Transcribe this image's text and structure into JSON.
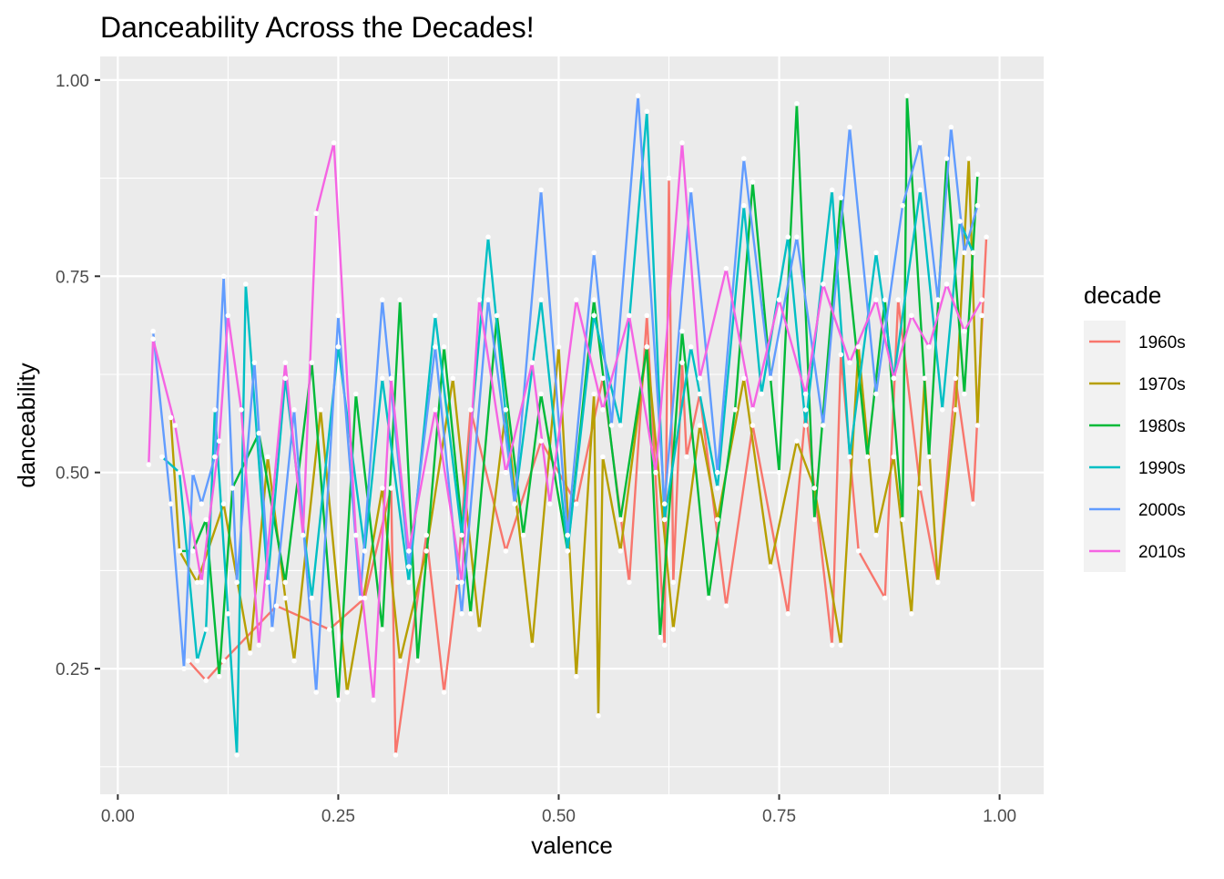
{
  "chart_data": {
    "type": "line",
    "title": "Danceability Across the Decades!",
    "xlabel": "valence",
    "ylabel": "danceability",
    "xlim": [
      -0.02,
      1.05
    ],
    "ylim": [
      0.09,
      1.03
    ],
    "x_ticks": [
      0.0,
      0.25,
      0.5,
      0.75,
      1.0
    ],
    "x_tick_labels": [
      "0.00",
      "0.25",
      "0.50",
      "0.75",
      "1.00"
    ],
    "y_ticks": [
      0.25,
      0.5,
      0.75,
      1.0
    ],
    "y_tick_labels": [
      "0.25",
      "0.50",
      "0.75",
      "1.00"
    ],
    "grid": true,
    "legend_title": "decade",
    "legend_position": "right",
    "point_color": "#ffffff",
    "panel_background": "#ebebeb",
    "series": [
      {
        "name": "1960s",
        "color": "#F8766D",
        "x": [
          0.08,
          0.1,
          0.12,
          0.18,
          0.24,
          0.28,
          0.31,
          0.315,
          0.35,
          0.37,
          0.385,
          0.4,
          0.44,
          0.48,
          0.52,
          0.55,
          0.58,
          0.6,
          0.62,
          0.625,
          0.63,
          0.64,
          0.645,
          0.66,
          0.69,
          0.72,
          0.76,
          0.78,
          0.81,
          0.82,
          0.84,
          0.87,
          0.885,
          0.91,
          0.93,
          0.95,
          0.97,
          0.985
        ],
        "y": [
          0.26,
          0.235,
          0.26,
          0.33,
          0.3,
          0.34,
          0.48,
          0.14,
          0.42,
          0.22,
          0.36,
          0.58,
          0.4,
          0.54,
          0.46,
          0.62,
          0.36,
          0.7,
          0.28,
          0.875,
          0.36,
          0.64,
          0.52,
          0.6,
          0.33,
          0.56,
          0.32,
          0.58,
          0.28,
          0.65,
          0.4,
          0.34,
          0.72,
          0.48,
          0.36,
          0.62,
          0.46,
          0.8
        ]
      },
      {
        "name": "1970s",
        "color": "#B79F00",
        "x": [
          0.06,
          0.07,
          0.09,
          0.12,
          0.15,
          0.17,
          0.19,
          0.2,
          0.23,
          0.26,
          0.3,
          0.32,
          0.35,
          0.38,
          0.41,
          0.44,
          0.47,
          0.5,
          0.52,
          0.54,
          0.545,
          0.55,
          0.57,
          0.6,
          0.63,
          0.66,
          0.68,
          0.71,
          0.74,
          0.77,
          0.79,
          0.82,
          0.84,
          0.86,
          0.88,
          0.9,
          0.915,
          0.93,
          0.95,
          0.965,
          0.975,
          0.98
        ],
        "y": [
          0.57,
          0.4,
          0.36,
          0.46,
          0.27,
          0.52,
          0.34,
          0.26,
          0.58,
          0.22,
          0.48,
          0.26,
          0.4,
          0.62,
          0.3,
          0.58,
          0.28,
          0.66,
          0.24,
          0.6,
          0.19,
          0.52,
          0.4,
          0.66,
          0.3,
          0.56,
          0.44,
          0.62,
          0.38,
          0.54,
          0.48,
          0.28,
          0.66,
          0.42,
          0.52,
          0.32,
          0.62,
          0.36,
          0.58,
          0.9,
          0.56,
          0.7
        ]
      },
      {
        "name": "1980s",
        "color": "#00BA38",
        "x": [
          0.07,
          0.085,
          0.1,
          0.115,
          0.13,
          0.16,
          0.19,
          0.22,
          0.25,
          0.27,
          0.3,
          0.32,
          0.34,
          0.37,
          0.4,
          0.43,
          0.46,
          0.48,
          0.51,
          0.54,
          0.57,
          0.6,
          0.615,
          0.64,
          0.67,
          0.7,
          0.72,
          0.75,
          0.77,
          0.79,
          0.82,
          0.85,
          0.87,
          0.89,
          0.895,
          0.92,
          0.94,
          0.96,
          0.975
        ],
        "y": [
          0.4,
          0.4,
          0.44,
          0.24,
          0.48,
          0.55,
          0.36,
          0.64,
          0.21,
          0.6,
          0.3,
          0.72,
          0.26,
          0.66,
          0.32,
          0.7,
          0.42,
          0.6,
          0.4,
          0.72,
          0.44,
          0.66,
          0.29,
          0.68,
          0.34,
          0.58,
          0.87,
          0.5,
          0.97,
          0.44,
          0.85,
          0.52,
          0.72,
          0.44,
          0.98,
          0.52,
          0.9,
          0.6,
          0.88
        ]
      },
      {
        "name": "1990s",
        "color": "#00BFC4",
        "x": [
          0.05,
          0.07,
          0.09,
          0.1,
          0.11,
          0.125,
          0.135,
          0.145,
          0.17,
          0.19,
          0.22,
          0.25,
          0.28,
          0.3,
          0.33,
          0.36,
          0.39,
          0.42,
          0.45,
          0.48,
          0.51,
          0.54,
          0.57,
          0.6,
          0.62,
          0.65,
          0.68,
          0.71,
          0.73,
          0.76,
          0.78,
          0.81,
          0.83,
          0.86,
          0.88,
          0.91,
          0.935,
          0.955,
          0.97
        ],
        "y": [
          0.52,
          0.5,
          0.26,
          0.3,
          0.58,
          0.32,
          0.14,
          0.74,
          0.36,
          0.62,
          0.34,
          0.66,
          0.4,
          0.62,
          0.36,
          0.7,
          0.42,
          0.8,
          0.46,
          0.72,
          0.4,
          0.7,
          0.56,
          0.96,
          0.44,
          0.66,
          0.48,
          0.84,
          0.6,
          0.8,
          0.56,
          0.86,
          0.52,
          0.78,
          0.62,
          0.86,
          0.58,
          0.82,
          0.78
        ]
      },
      {
        "name": "2000s",
        "color": "#619CFF",
        "x": [
          0.04,
          0.06,
          0.075,
          0.085,
          0.095,
          0.11,
          0.12,
          0.135,
          0.155,
          0.175,
          0.2,
          0.225,
          0.25,
          0.275,
          0.3,
          0.33,
          0.36,
          0.39,
          0.42,
          0.45,
          0.48,
          0.51,
          0.54,
          0.56,
          0.59,
          0.62,
          0.65,
          0.68,
          0.71,
          0.74,
          0.77,
          0.8,
          0.83,
          0.86,
          0.89,
          0.91,
          0.93,
          0.945,
          0.96,
          0.975
        ],
        "y": [
          0.68,
          0.46,
          0.25,
          0.5,
          0.46,
          0.52,
          0.75,
          0.36,
          0.64,
          0.3,
          0.58,
          0.22,
          0.7,
          0.34,
          0.72,
          0.38,
          0.66,
          0.32,
          0.72,
          0.46,
          0.86,
          0.42,
          0.78,
          0.56,
          0.98,
          0.46,
          0.86,
          0.5,
          0.9,
          0.62,
          0.8,
          0.56,
          0.94,
          0.6,
          0.84,
          0.92,
          0.72,
          0.94,
          0.78,
          0.84
        ]
      },
      {
        "name": "2010s",
        "color": "#F564E3",
        "x": [
          0.035,
          0.04,
          0.065,
          0.095,
          0.115,
          0.125,
          0.14,
          0.16,
          0.19,
          0.21,
          0.225,
          0.245,
          0.27,
          0.29,
          0.31,
          0.33,
          0.36,
          0.39,
          0.41,
          0.44,
          0.47,
          0.49,
          0.52,
          0.55,
          0.58,
          0.61,
          0.64,
          0.66,
          0.69,
          0.72,
          0.75,
          0.78,
          0.8,
          0.83,
          0.86,
          0.88,
          0.9,
          0.92,
          0.94,
          0.96,
          0.98
        ],
        "y": [
          0.51,
          0.67,
          0.56,
          0.36,
          0.54,
          0.7,
          0.58,
          0.28,
          0.64,
          0.42,
          0.83,
          0.92,
          0.42,
          0.21,
          0.62,
          0.4,
          0.58,
          0.36,
          0.72,
          0.5,
          0.64,
          0.46,
          0.72,
          0.58,
          0.7,
          0.5,
          0.92,
          0.62,
          0.76,
          0.58,
          0.72,
          0.6,
          0.74,
          0.64,
          0.72,
          0.62,
          0.7,
          0.66,
          0.74,
          0.68,
          0.72
        ]
      }
    ]
  }
}
